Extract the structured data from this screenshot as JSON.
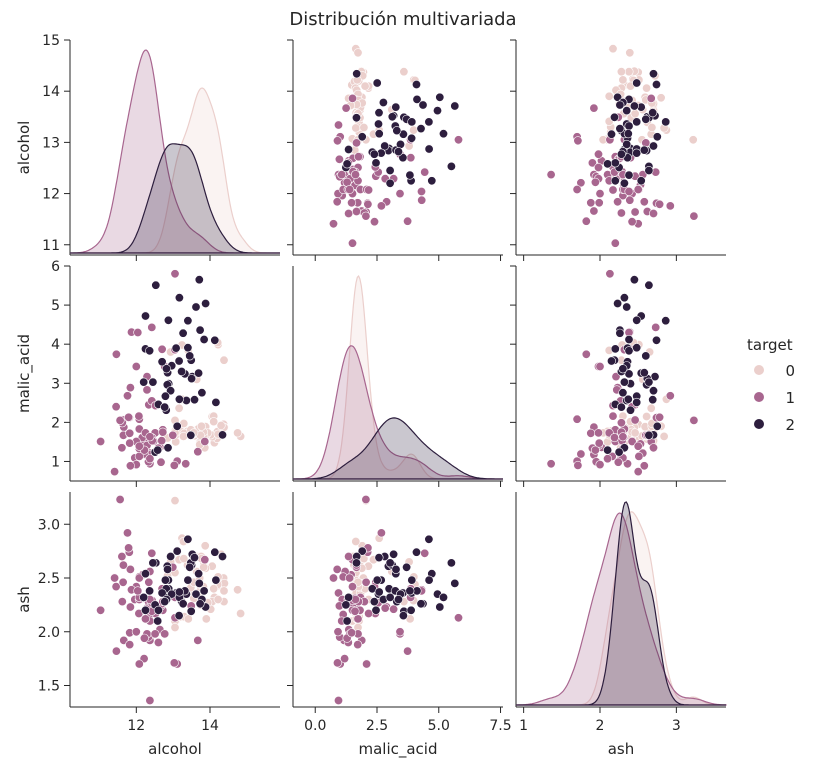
{
  "chart_data": {
    "type": "scatter",
    "title": "Distribución multivariada",
    "variables": [
      "alcohol",
      "malic_acid",
      "ash"
    ],
    "ranges": {
      "alcohol": [
        10.8,
        15.0
      ],
      "malic_acid": [
        0.5,
        6.0
      ],
      "ash": [
        1.3,
        3.3
      ]
    },
    "bottom_ranges": {
      "alcohol": [
        10.2,
        15.9
      ],
      "malic_acid": [
        -0.9,
        7.6
      ],
      "ash": [
        0.9,
        3.65
      ]
    },
    "ticks": {
      "alcohol": {
        "left": [
          11,
          12,
          13,
          14,
          15
        ],
        "bottom": [
          12,
          14
        ]
      },
      "malic_acid": {
        "left": [
          1,
          2,
          3,
          4,
          5,
          6
        ],
        "bottom": [
          0.0,
          2.5,
          5.0,
          7.5
        ]
      },
      "ash": {
        "left": [
          1.5,
          2.0,
          2.5,
          3.0
        ],
        "bottom": [
          1,
          2,
          3
        ]
      }
    },
    "tick_labels": {
      "alcohol": {
        "left": [
          "11",
          "12",
          "13",
          "14",
          "15"
        ],
        "bottom": [
          "12",
          "14"
        ]
      },
      "malic_acid": {
        "left": [
          "1",
          "2",
          "3",
          "4",
          "5",
          "6"
        ],
        "bottom": [
          "0.0",
          "2.5",
          "5.0",
          "7.5"
        ]
      },
      "ash": {
        "left": [
          "1.5",
          "2.0",
          "2.5",
          "3.0"
        ],
        "bottom": [
          "1",
          "2",
          "3"
        ]
      }
    },
    "legend": {
      "title": "target",
      "placement": "right",
      "entries": [
        {
          "label": "0",
          "color": "#ebcfcc"
        },
        {
          "label": "1",
          "color": "#a8668f"
        },
        {
          "label": "2",
          "color": "#2d1e3e"
        }
      ]
    },
    "groups": [
      {
        "label": "0",
        "color": "#ebcfcc",
        "points": [
          [
            14.23,
            1.71,
            2.43
          ],
          [
            13.2,
            1.78,
            2.14
          ],
          [
            13.16,
            2.36,
            2.67
          ],
          [
            14.37,
            1.95,
            2.5
          ],
          [
            13.24,
            2.59,
            2.87
          ],
          [
            14.2,
            1.76,
            2.45
          ],
          [
            14.39,
            1.87,
            2.45
          ],
          [
            14.06,
            2.15,
            2.61
          ],
          [
            14.83,
            1.64,
            2.17
          ],
          [
            13.86,
            1.35,
            2.27
          ],
          [
            14.1,
            2.16,
            2.3
          ],
          [
            14.12,
            1.48,
            2.32
          ],
          [
            13.75,
            1.73,
            2.41
          ],
          [
            14.75,
            1.73,
            2.39
          ],
          [
            14.38,
            1.87,
            2.38
          ],
          [
            13.63,
            1.81,
            2.7
          ],
          [
            14.3,
            1.92,
            2.72
          ],
          [
            13.83,
            1.57,
            2.62
          ],
          [
            14.19,
            1.59,
            2.48
          ],
          [
            13.64,
            3.1,
            2.56
          ],
          [
            14.06,
            1.63,
            2.28
          ],
          [
            12.93,
            3.8,
            2.65
          ],
          [
            13.71,
            1.86,
            2.36
          ],
          [
            12.85,
            1.6,
            2.52
          ],
          [
            13.5,
            1.81,
            2.61
          ],
          [
            13.05,
            2.05,
            3.22
          ],
          [
            13.39,
            1.77,
            2.62
          ],
          [
            13.3,
            1.72,
            2.14
          ],
          [
            13.87,
            1.9,
            2.8
          ],
          [
            14.02,
            1.68,
            2.21
          ],
          [
            13.73,
            1.5,
            2.7
          ],
          [
            13.58,
            1.66,
            2.36
          ],
          [
            13.68,
            1.83,
            2.36
          ],
          [
            13.76,
            1.53,
            2.7
          ],
          [
            13.51,
            1.8,
            2.65
          ],
          [
            13.48,
            1.81,
            2.41
          ],
          [
            13.28,
            1.64,
            2.84
          ],
          [
            13.05,
            1.65,
            2.55
          ],
          [
            13.07,
            1.5,
            2.1
          ],
          [
            14.22,
            3.99,
            2.51
          ],
          [
            13.56,
            1.71,
            2.31
          ],
          [
            13.41,
            3.84,
            2.12
          ],
          [
            13.88,
            1.89,
            2.59
          ],
          [
            13.24,
            3.98,
            2.29
          ],
          [
            13.05,
            1.77,
            2.1
          ],
          [
            14.21,
            4.04,
            2.44
          ],
          [
            14.38,
            3.59,
            2.28
          ],
          [
            13.9,
            1.68,
            2.12
          ],
          [
            14.1,
            2.02,
            2.4
          ],
          [
            13.94,
            1.73,
            2.27
          ],
          [
            13.05,
            1.73,
            2.04
          ],
          [
            13.83,
            1.65,
            2.6
          ],
          [
            13.82,
            1.75,
            2.42
          ],
          [
            13.77,
            1.9,
            2.68
          ],
          [
            13.74,
            1.67,
            2.25
          ],
          [
            13.56,
            1.73,
            2.46
          ],
          [
            14.22,
            1.7,
            2.3
          ],
          [
            13.29,
            1.97,
            2.68
          ],
          [
            13.72,
            1.43,
            2.5
          ]
        ]
      },
      {
        "label": "1",
        "color": "#a8668f",
        "points": [
          [
            12.37,
            0.94,
            1.36
          ],
          [
            12.33,
            1.1,
            2.28
          ],
          [
            12.64,
            1.36,
            2.02
          ],
          [
            13.67,
            1.25,
            1.92
          ],
          [
            12.37,
            1.13,
            2.16
          ],
          [
            12.17,
            1.45,
            2.53
          ],
          [
            12.37,
            1.21,
            2.56
          ],
          [
            13.11,
            1.01,
            1.7
          ],
          [
            12.37,
            1.17,
            1.92
          ],
          [
            13.34,
            0.94,
            2.36
          ],
          [
            12.21,
            1.19,
            1.75
          ],
          [
            12.29,
            1.61,
            2.21
          ],
          [
            13.86,
            1.51,
            2.67
          ],
          [
            13.49,
            1.66,
            2.24
          ],
          [
            12.99,
            1.67,
            2.6
          ],
          [
            11.96,
            1.09,
            2.3
          ],
          [
            11.66,
            1.88,
            1.92
          ],
          [
            13.03,
            0.9,
            1.71
          ],
          [
            11.84,
            2.89,
            2.23
          ],
          [
            12.33,
            0.99,
            1.95
          ],
          [
            12.7,
            3.87,
            2.4
          ],
          [
            12.0,
            0.92,
            2.0
          ],
          [
            12.72,
            1.81,
            2.2
          ],
          [
            12.08,
            1.13,
            2.51
          ],
          [
            13.05,
            3.86,
            2.32
          ],
          [
            11.84,
            0.89,
            2.58
          ],
          [
            12.67,
            0.98,
            2.24
          ],
          [
            12.16,
            1.61,
            2.31
          ],
          [
            11.65,
            1.67,
            2.62
          ],
          [
            11.64,
            2.06,
            2.46
          ],
          [
            12.08,
            1.33,
            2.3
          ],
          [
            12.08,
            1.83,
            2.32
          ],
          [
            12.0,
            1.51,
            2.42
          ],
          [
            12.69,
            1.53,
            2.26
          ],
          [
            12.29,
            2.83,
            2.22
          ],
          [
            11.62,
            1.99,
            2.28
          ],
          [
            12.47,
            1.52,
            2.2
          ],
          [
            11.81,
            2.12,
            2.74
          ],
          [
            12.29,
            1.41,
            1.98
          ],
          [
            12.37,
            1.07,
            2.1
          ],
          [
            12.29,
            3.17,
            2.21
          ],
          [
            12.08,
            2.08,
            1.7
          ],
          [
            12.6,
            1.34,
            1.9
          ],
          [
            12.34,
            2.45,
            2.46
          ],
          [
            11.82,
            1.72,
            1.88
          ],
          [
            12.51,
            1.73,
            1.98
          ],
          [
            12.42,
            2.55,
            2.27
          ],
          [
            12.25,
            1.73,
            2.12
          ],
          [
            12.72,
            1.75,
            2.28
          ],
          [
            12.22,
            1.29,
            1.94
          ],
          [
            11.61,
            1.35,
            2.7
          ],
          [
            11.46,
            3.74,
            1.82
          ],
          [
            12.52,
            2.43,
            2.17
          ],
          [
            11.76,
            2.68,
            2.92
          ],
          [
            11.41,
            0.74,
            2.5
          ],
          [
            12.08,
            1.39,
            2.5
          ],
          [
            11.03,
            1.51,
            2.2
          ],
          [
            11.82,
            1.47,
            1.99
          ],
          [
            12.42,
            1.61,
            2.19
          ],
          [
            12.77,
            3.43,
            1.98
          ],
          [
            12.0,
            3.43,
            2.0
          ],
          [
            11.45,
            2.4,
            2.42
          ],
          [
            11.56,
            2.05,
            3.23
          ],
          [
            12.42,
            4.43,
            2.73
          ],
          [
            13.05,
            5.8,
            2.13
          ],
          [
            11.87,
            4.31,
            2.39
          ],
          [
            12.07,
            2.16,
            2.17
          ],
          [
            12.43,
            1.53,
            2.29
          ],
          [
            11.79,
            2.13,
            2.78
          ],
          [
            12.37,
            1.63,
            2.3
          ],
          [
            12.04,
            4.3,
            2.38
          ]
        ]
      },
      {
        "label": "2",
        "color": "#2d1e3e",
        "points": [
          [
            12.86,
            1.35,
            2.32
          ],
          [
            12.88,
            2.99,
            2.4
          ],
          [
            12.81,
            2.31,
            2.4
          ],
          [
            12.7,
            3.55,
            2.36
          ],
          [
            12.51,
            1.24,
            2.25
          ],
          [
            12.6,
            2.46,
            2.2
          ],
          [
            12.25,
            4.72,
            2.54
          ],
          [
            12.53,
            5.51,
            2.64
          ],
          [
            13.49,
            3.59,
            2.19
          ],
          [
            12.84,
            2.96,
            2.61
          ],
          [
            12.93,
            2.81,
            2.7
          ],
          [
            13.36,
            2.56,
            2.35
          ],
          [
            13.52,
            3.17,
            2.72
          ],
          [
            13.62,
            4.95,
            2.35
          ],
          [
            12.25,
            3.88,
            2.2
          ],
          [
            13.16,
            3.57,
            2.15
          ],
          [
            13.88,
            5.04,
            2.23
          ],
          [
            12.87,
            4.61,
            2.48
          ],
          [
            13.32,
            3.24,
            2.38
          ],
          [
            13.08,
            3.9,
            2.36
          ],
          [
            13.5,
            3.12,
            2.62
          ],
          [
            12.79,
            2.67,
            2.48
          ],
          [
            13.11,
            1.9,
            2.75
          ],
          [
            13.23,
            3.3,
            2.28
          ],
          [
            12.58,
            1.29,
            2.1
          ],
          [
            13.17,
            5.19,
            2.32
          ],
          [
            13.84,
            4.12,
            2.38
          ],
          [
            12.45,
            3.03,
            2.64
          ],
          [
            14.34,
            1.68,
            2.7
          ],
          [
            13.48,
            1.67,
            2.64
          ],
          [
            12.36,
            3.83,
            2.38
          ],
          [
            13.69,
            3.26,
            2.54
          ],
          [
            12.85,
            3.27,
            2.58
          ],
          [
            12.96,
            3.45,
            2.35
          ],
          [
            13.78,
            2.76,
            2.3
          ],
          [
            13.73,
            4.36,
            2.26
          ],
          [
            13.45,
            3.7,
            2.6
          ],
          [
            12.82,
            3.37,
            2.3
          ],
          [
            13.58,
            2.58,
            2.69
          ],
          [
            13.4,
            4.6,
            2.86
          ],
          [
            12.2,
            3.03,
            2.32
          ],
          [
            12.77,
            2.39,
            2.28
          ],
          [
            14.16,
            2.51,
            2.48
          ],
          [
            13.71,
            5.65,
            2.45
          ],
          [
            13.4,
            3.91,
            2.48
          ],
          [
            13.27,
            4.28,
            2.26
          ],
          [
            13.17,
            2.59,
            2.37
          ],
          [
            14.13,
            4.1,
            2.74
          ]
        ]
      }
    ]
  }
}
